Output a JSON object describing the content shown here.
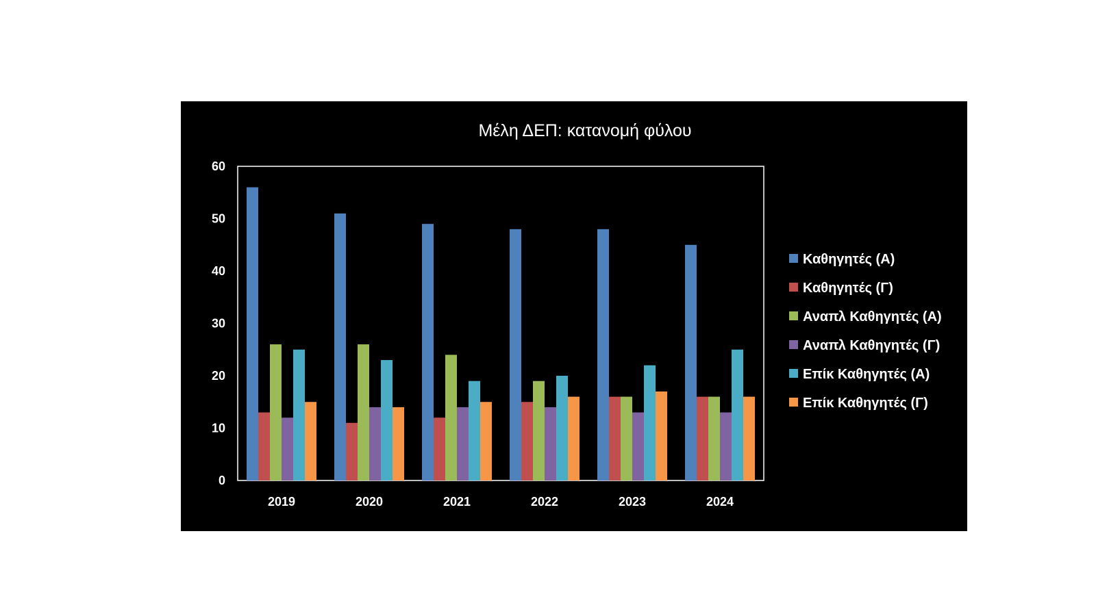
{
  "chart_data": {
    "type": "bar",
    "title": "Μέλη ΔΕΠ: κατανομή φύλου",
    "xlabel": "",
    "ylabel": "",
    "ylim": [
      0,
      60
    ],
    "yticks": [
      0,
      10,
      20,
      30,
      40,
      50,
      60
    ],
    "grid": false,
    "legend_position": "right",
    "categories": [
      "2019",
      "2020",
      "2021",
      "2022",
      "2023",
      "2024"
    ],
    "series": [
      {
        "name": "Καθηγητές (Α)",
        "color": "#4f81bd",
        "values": [
          56,
          51,
          49,
          48,
          48,
          45
        ]
      },
      {
        "name": "Καθηγητές (Γ)",
        "color": "#c0504d",
        "values": [
          13,
          11,
          12,
          15,
          16,
          16
        ]
      },
      {
        "name": "Αναπλ Καθηγητές (Α)",
        "color": "#9bbb59",
        "values": [
          26,
          26,
          24,
          19,
          16,
          16
        ]
      },
      {
        "name": "Αναπλ Καθηγητές (Γ)",
        "color": "#8064a2",
        "values": [
          12,
          14,
          14,
          14,
          13,
          13
        ]
      },
      {
        "name": "Επίκ Καθηγητές (Α)",
        "color": "#4bacc6",
        "values": [
          25,
          23,
          19,
          20,
          22,
          25
        ]
      },
      {
        "name": "Επίκ Καθηγητές (Γ)",
        "color": "#f79646",
        "values": [
          15,
          14,
          15,
          16,
          17,
          16
        ]
      }
    ]
  }
}
